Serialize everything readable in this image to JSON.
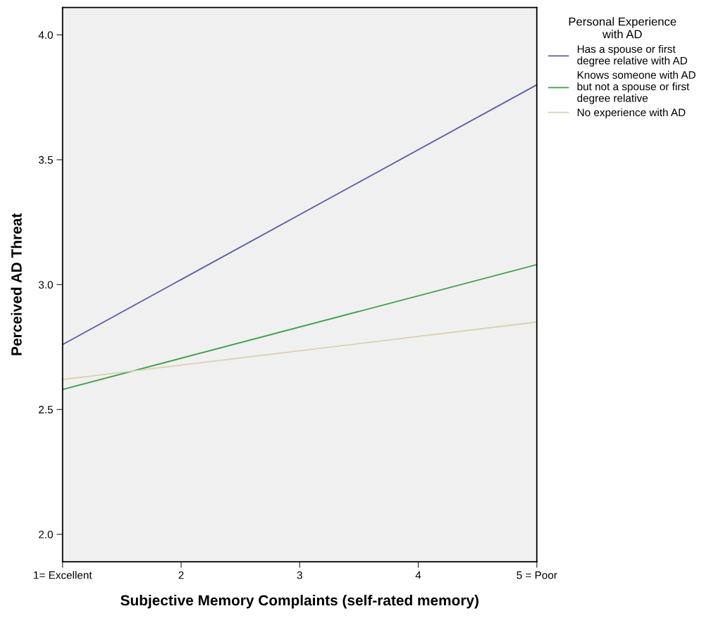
{
  "chart_data": {
    "type": "line",
    "xlabel": "Subjective Memory Complaints (self-rated memory)",
    "ylabel": "Perceived AD Threat",
    "legend_title": "Personal Experience\nwith AD",
    "x": [
      1,
      5
    ],
    "series": [
      {
        "name": "Has a spouse or first\ndegree relative with AD",
        "color": "#5c5fa6",
        "values": [
          2.76,
          3.8
        ]
      },
      {
        "name": "Knows someone with AD\nbut not a spouse or first\ndegree relative",
        "color": "#3c9e4a",
        "values": [
          2.58,
          3.08
        ]
      },
      {
        "name": "No experience with AD",
        "color": "#d8d2b0",
        "values": [
          2.62,
          2.85
        ]
      }
    ],
    "xlim": [
      1,
      5
    ],
    "xticks": [
      {
        "value": 1,
        "label": "1= Excellent"
      },
      2,
      3,
      4,
      {
        "value": 5,
        "label": "5 = Poor"
      }
    ],
    "ylim": [
      1.89,
      4.11
    ],
    "yticks": [
      {
        "value": 2.0,
        "label": "2.0"
      },
      {
        "value": 2.5,
        "label": "2.5"
      },
      {
        "value": 3.0,
        "label": "3.0"
      },
      {
        "value": 3.5,
        "label": "3.5"
      },
      {
        "value": 4.0,
        "label": "4.0"
      }
    ],
    "grid": false,
    "legend": "right",
    "marker": "none",
    "line_style": "solid"
  }
}
